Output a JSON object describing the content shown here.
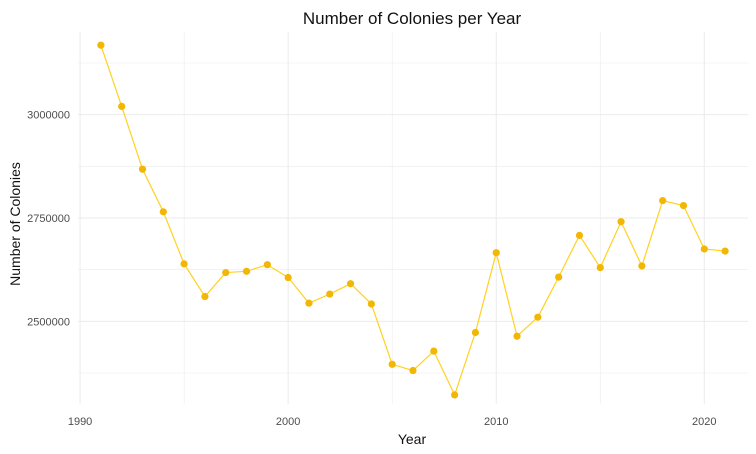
{
  "chart_data": {
    "type": "line",
    "title": "Number of Colonies per Year",
    "xlabel": "Year",
    "ylabel": "Number of Colonies",
    "x": [
      1991,
      1992,
      1993,
      1994,
      1995,
      1996,
      1997,
      1998,
      1999,
      2000,
      2001,
      2002,
      2003,
      2004,
      2005,
      2006,
      2007,
      2008,
      2009,
      2010,
      2011,
      2012,
      2013,
      2014,
      2015,
      2016,
      2017,
      2018,
      2019,
      2020,
      2021
    ],
    "series": [
      {
        "values": [
          3168000,
          3020000,
          2868000,
          2765000,
          2639000,
          2560000,
          2618000,
          2621000,
          2637000,
          2606000,
          2544000,
          2566000,
          2591000,
          2542000,
          2396000,
          2381000,
          2428000,
          2322000,
          2473000,
          2666000,
          2464000,
          2510000,
          2607000,
          2708000,
          2630000,
          2741000,
          2634000,
          2792000,
          2780000,
          2675000,
          2670000
        ],
        "color": "#FFD21F",
        "point_color": "#F2B705"
      }
    ],
    "xlim": [
      1989.9,
      2022.1
    ],
    "ylim": [
      2300000,
      3200000
    ],
    "x_ticks": [
      1990,
      2000,
      2010,
      2020
    ],
    "x_tick_labels": [
      "1990",
      "2000",
      "2010",
      "2020"
    ],
    "y_ticks": [
      2500000,
      2750000,
      3000000
    ],
    "y_tick_labels": [
      "2500000",
      "2750000",
      "3000000"
    ],
    "grid": true,
    "legend": "none",
    "colors": {
      "grid": "#EBEBEB",
      "line": "#FFD21F",
      "point": "#F2B705",
      "text": "#4D4D4D"
    }
  }
}
